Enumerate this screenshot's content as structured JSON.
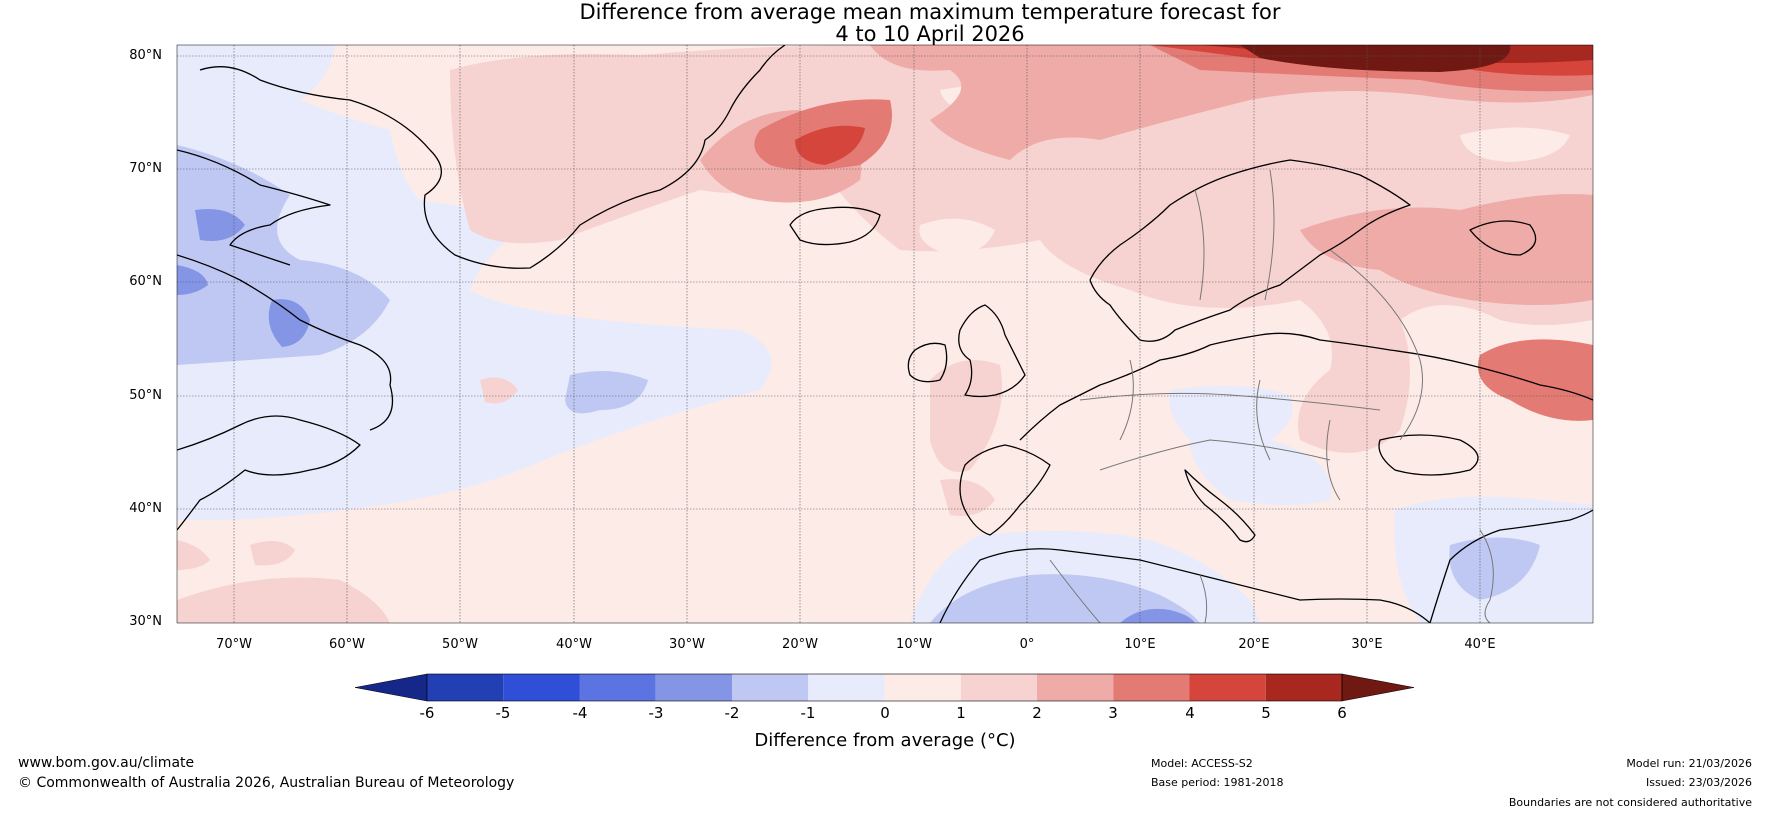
{
  "title": {
    "line1": "Difference from average mean maximum temperature forecast for",
    "line2": "4 to 10 April 2026"
  },
  "map": {
    "region": "North Atlantic and Europe",
    "lat_labels": [
      "80°N",
      "70°N",
      "60°N",
      "50°N",
      "40°N",
      "30°N"
    ],
    "lon_labels": [
      "70°W",
      "60°W",
      "50°W",
      "40°W",
      "30°W",
      "20°W",
      "10°W",
      "0°",
      "10°E",
      "20°E",
      "30°E",
      "40°E"
    ],
    "lat_range": [
      30,
      81
    ],
    "lon_range": [
      -75,
      50
    ]
  },
  "colorbar": {
    "label": "Difference from average (°C)",
    "ticks": [
      "-6",
      "-5",
      "-4",
      "-3",
      "-2",
      "-1",
      "0",
      "1",
      "2",
      "3",
      "4",
      "5",
      "6"
    ],
    "colors": [
      "#16278a",
      "#223fb3",
      "#2f4fd9",
      "#5c73e2",
      "#8495e6",
      "#bfc8f2",
      "#e8ebfb",
      "#fdebe8",
      "#f6d3d0",
      "#eeaba7",
      "#e37a74",
      "#d6453c",
      "#a8271f",
      "#701913"
    ]
  },
  "footer": {
    "website": "www.bom.gov.au/climate",
    "copyright": "© Commonwealth of Australia 2026, Australian Bureau of Meteorology",
    "model": "Model: ACCESS-S2",
    "base_period": "Base period: 1981-2018",
    "model_run": "Model run: 21/03/2026",
    "issued": "Issued: 23/03/2026",
    "disclaimer": "Boundaries are not considered authoritative"
  }
}
